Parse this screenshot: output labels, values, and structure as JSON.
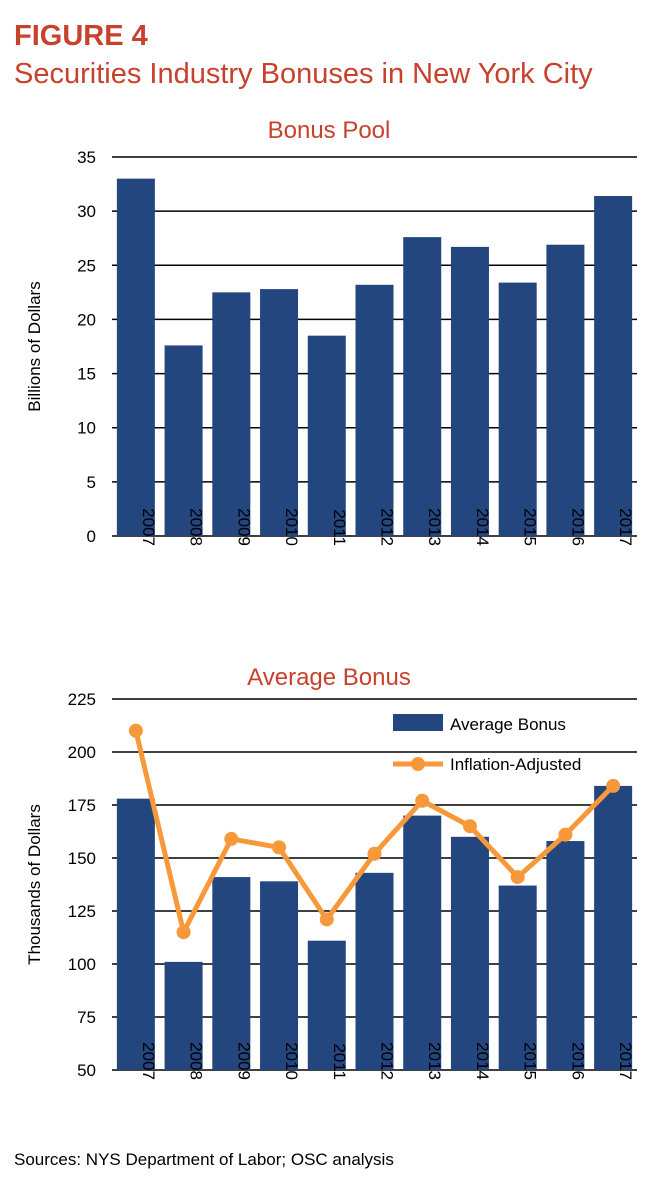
{
  "figure": {
    "label": "FIGURE 4",
    "title": "Securities Industry Bonuses in New York City",
    "source": "Sources: NYS Department of Labor; OSC analysis"
  },
  "colors": {
    "title": "#c8412c",
    "bar": "#23467f",
    "line": "#f7993a",
    "grid": "#000000"
  },
  "chart_data": [
    {
      "type": "bar",
      "title": "Bonus Pool",
      "xlabel": "",
      "ylabel": "Billions of Dollars",
      "categories": [
        "2007",
        "2008",
        "2009",
        "2010",
        "2011",
        "2012",
        "2013",
        "2014",
        "2015",
        "2016",
        "2017"
      ],
      "values": [
        33.0,
        17.6,
        22.5,
        22.8,
        18.5,
        23.2,
        27.6,
        26.7,
        23.4,
        26.9,
        31.4
      ],
      "ylim": [
        0,
        35
      ],
      "yticks": [
        0,
        5,
        10,
        15,
        20,
        25,
        30,
        35
      ],
      "grid": true
    },
    {
      "type": "bar+line",
      "title": "Average Bonus",
      "xlabel": "",
      "ylabel": "Thousands of Dollars",
      "categories": [
        "2007",
        "2008",
        "2009",
        "2010",
        "2011",
        "2012",
        "2013",
        "2014",
        "2015",
        "2016",
        "2017"
      ],
      "series": [
        {
          "name": "Average Bonus",
          "kind": "bar",
          "values": [
            178,
            101,
            141,
            139,
            111,
            143,
            170,
            160,
            137,
            158,
            184
          ]
        },
        {
          "name": "Inflation-Adjusted",
          "kind": "line",
          "values": [
            210,
            115,
            159,
            155,
            121,
            152,
            177,
            165,
            141,
            161,
            184
          ]
        }
      ],
      "ylim": [
        50,
        225
      ],
      "yticks": [
        50,
        75,
        100,
        125,
        150,
        175,
        200,
        225
      ],
      "legend": "top-right",
      "grid": true
    }
  ]
}
